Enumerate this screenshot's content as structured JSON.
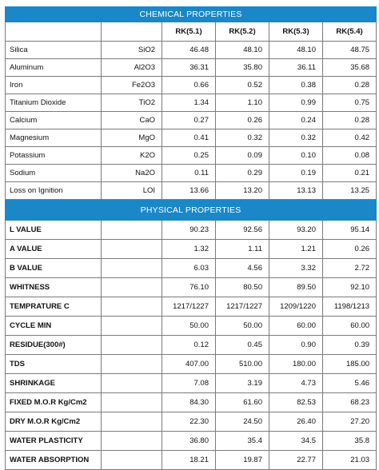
{
  "chemical": {
    "title": "CHEMICAL PROPERTIES",
    "columns": [
      "RK(5.1)",
      "RK(5.2)",
      "RK(5.3)",
      "RK(5.4)"
    ],
    "rows": [
      {
        "name": "Silica",
        "symbol": "SiO2",
        "values": [
          "46.48",
          "48.10",
          "48.10",
          "48.75"
        ]
      },
      {
        "name": "Aluminum",
        "symbol": "Al2O3",
        "values": [
          "36.31",
          "35.80",
          "36.11",
          "35.68"
        ]
      },
      {
        "name": "Iron",
        "symbol": "Fe2O3",
        "values": [
          "0.66",
          "0.52",
          "0.38",
          "0.28"
        ]
      },
      {
        "name": "Titanium Dioxide",
        "symbol": "TiO2",
        "values": [
          "1.34",
          "1.10",
          "0.99",
          "0.75"
        ]
      },
      {
        "name": "Calcium",
        "symbol": "CaO",
        "values": [
          "0.27",
          "0.26",
          "0.24",
          "0.28"
        ]
      },
      {
        "name": "Magnesium",
        "symbol": "MgO",
        "values": [
          "0.41",
          "0.32",
          "0.32",
          "0.42"
        ]
      },
      {
        "name": "Potassium",
        "symbol": "K2O",
        "values": [
          "0.25",
          "0.09",
          "0.10",
          "0.08"
        ]
      },
      {
        "name": "Sodium",
        "symbol": "Na2O",
        "values": [
          "0.11",
          "0.29",
          "0.19",
          "0.21"
        ]
      },
      {
        "name": "Loss on Ignition",
        "symbol": "LOI",
        "values": [
          "13.66",
          "13.20",
          "13.13",
          "13.25"
        ]
      }
    ]
  },
  "physical": {
    "title": "PHYSICAL PROPERTIES",
    "rows": [
      {
        "name": "L VALUE",
        "values": [
          "90.23",
          "92.56",
          "93.20",
          "95.14"
        ]
      },
      {
        "name": "A VALUE",
        "values": [
          "1.32",
          "1.11",
          "1.21",
          "0.26"
        ]
      },
      {
        "name": "B VALUE",
        "values": [
          "6.03",
          "4.56",
          "3.32",
          "2.72"
        ]
      },
      {
        "name": "WHITNESS",
        "values": [
          "76.10",
          "80.50",
          "89.50",
          "92.10"
        ]
      },
      {
        "name": "TEMPRATURE C",
        "values": [
          "1217/1227",
          "1217/1227",
          "1209/1220",
          "1198/1213"
        ]
      },
      {
        "name": "CYCLE MIN",
        "values": [
          "50.00",
          "50.00",
          "60.00",
          "60.00"
        ]
      },
      {
        "name": "RESIDUE(300#)",
        "values": [
          "0.12",
          "0.45",
          "0.90",
          "0.39"
        ]
      },
      {
        "name": "TDS",
        "values": [
          "407.00",
          "510.00",
          "180.00",
          "185.00"
        ]
      },
      {
        "name": "SHRINKAGE",
        "values": [
          "7.08",
          "3.19",
          "4.73",
          "5.46"
        ]
      },
      {
        "name": "FIXED M.O.R Kg/Cm2",
        "values": [
          "84.30",
          "61.60",
          "82.53",
          "68.23"
        ]
      },
      {
        "name": "DRY M.O.R Kg/Cm2",
        "values": [
          "22.30",
          "24.50",
          "26.40",
          "27.20"
        ]
      },
      {
        "name": "WATER PLASTICITY",
        "values": [
          "36.80",
          "35.4",
          "34.5",
          "35.8"
        ]
      },
      {
        "name": "WATER ABSORPTION",
        "values": [
          "18.21",
          "19.87",
          "22.77",
          "21.03"
        ]
      }
    ]
  },
  "colors": {
    "band": "#1a87c8",
    "band_text": "#ffffff",
    "grid": "#7a7a7a"
  }
}
